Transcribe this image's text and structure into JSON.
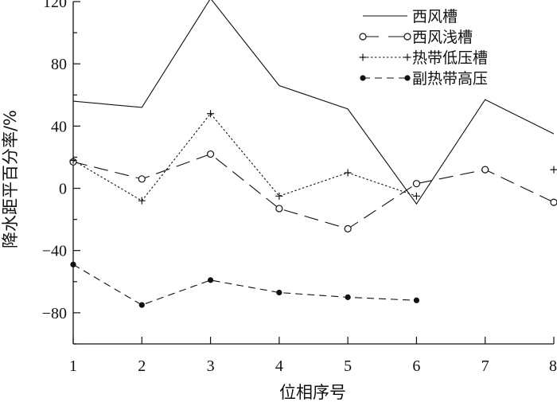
{
  "chart_data": {
    "type": "line",
    "xlabel": "位相序号",
    "ylabel": "降水距平百分率/%",
    "x": [
      1,
      2,
      3,
      4,
      5,
      6,
      7,
      8
    ],
    "xlim": [
      1,
      8
    ],
    "ylim": [
      -100,
      120
    ],
    "xticks": [
      1,
      2,
      3,
      4,
      5,
      6,
      7,
      8
    ],
    "yticks": [
      -80,
      -40,
      0,
      40,
      80,
      120
    ],
    "ytick_labels": [
      "−80",
      "−40",
      "0",
      "40",
      "80",
      "120"
    ],
    "grid": false,
    "legend_position": "top-right",
    "series": [
      {
        "name": "西风槽",
        "style": "solid",
        "marker": "none",
        "color": "#111111",
        "x": [
          1,
          2,
          3,
          4,
          5,
          6,
          7,
          8
        ],
        "values": [
          56,
          52,
          122,
          66,
          51,
          -10,
          57,
          35
        ]
      },
      {
        "name": "西风浅槽",
        "style": "long-dash",
        "marker": "open-circle",
        "color": "#111111",
        "x": [
          1,
          2,
          3,
          4,
          5,
          6,
          7,
          8
        ],
        "values": [
          17,
          6,
          22,
          -13,
          -26,
          3,
          12,
          -9
        ]
      },
      {
        "name": "热带低压槽",
        "style": "dotted",
        "marker": "plus",
        "color": "#111111",
        "x": [
          1,
          2,
          3,
          4,
          5,
          6,
          7,
          8
        ],
        "values": [
          18,
          -8,
          48,
          -5,
          10,
          -5,
          null,
          12
        ]
      },
      {
        "name": "副热带高压",
        "style": "dash",
        "marker": "filled-circle",
        "color": "#111111",
        "x": [
          1,
          2,
          3,
          4,
          5,
          6
        ],
        "values": [
          -49,
          -75,
          -59,
          -67,
          -70,
          -72
        ]
      }
    ]
  }
}
